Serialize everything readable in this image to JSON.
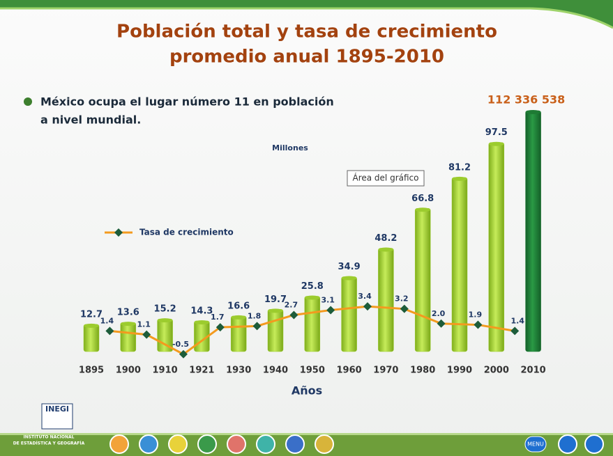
{
  "slide": {
    "logo": "INEGI",
    "institute": [
      "INSTITUTO NACIONAL",
      "DE ESTADÍSTICA Y GEOGRAFÍA"
    ],
    "tooltip": "Área del gráfico",
    "menu": "MENU",
    "bullet": [
      "México ocupa el lugar número 11 en población",
      "a nivel mundial."
    ]
  },
  "chart_data": {
    "type": "bar",
    "title": [
      "Población total y tasa de crecimiento",
      "promedio anual 1895-2010"
    ],
    "unit": "Millones",
    "x_label": "Años",
    "categories": [
      "1895",
      "1900",
      "1910",
      "1921",
      "1930",
      "1940",
      "1950",
      "1960",
      "1970",
      "1980",
      "1990",
      "2000",
      "2010"
    ],
    "series": [
      {
        "type": "bar",
        "color": "#9ccc2e",
        "last_color": "#1e7b34",
        "values": [
          12.7,
          13.6,
          15.2,
          14.3,
          16.6,
          19.7,
          25.8,
          34.9,
          48.2,
          66.8,
          81.2,
          97.5,
          112.336538
        ],
        "value_labels": [
          null,
          null,
          null,
          null,
          null,
          null,
          null,
          null,
          null,
          null,
          null,
          null,
          "112 336 538"
        ]
      },
      {
        "type": "line",
        "name": "Tasa de crecimiento",
        "color": "#f39a1e",
        "marker_color": "#1d5c3a",
        "values": [
          null,
          1.4,
          1.1,
          -0.5,
          1.7,
          1.8,
          2.7,
          3.1,
          3.4,
          3.2,
          2,
          1.9,
          1.4
        ],
        "value_labels": [
          null,
          null,
          null,
          null,
          null,
          null,
          null,
          null,
          null,
          null,
          "2.0",
          null,
          null
        ]
      }
    ]
  }
}
